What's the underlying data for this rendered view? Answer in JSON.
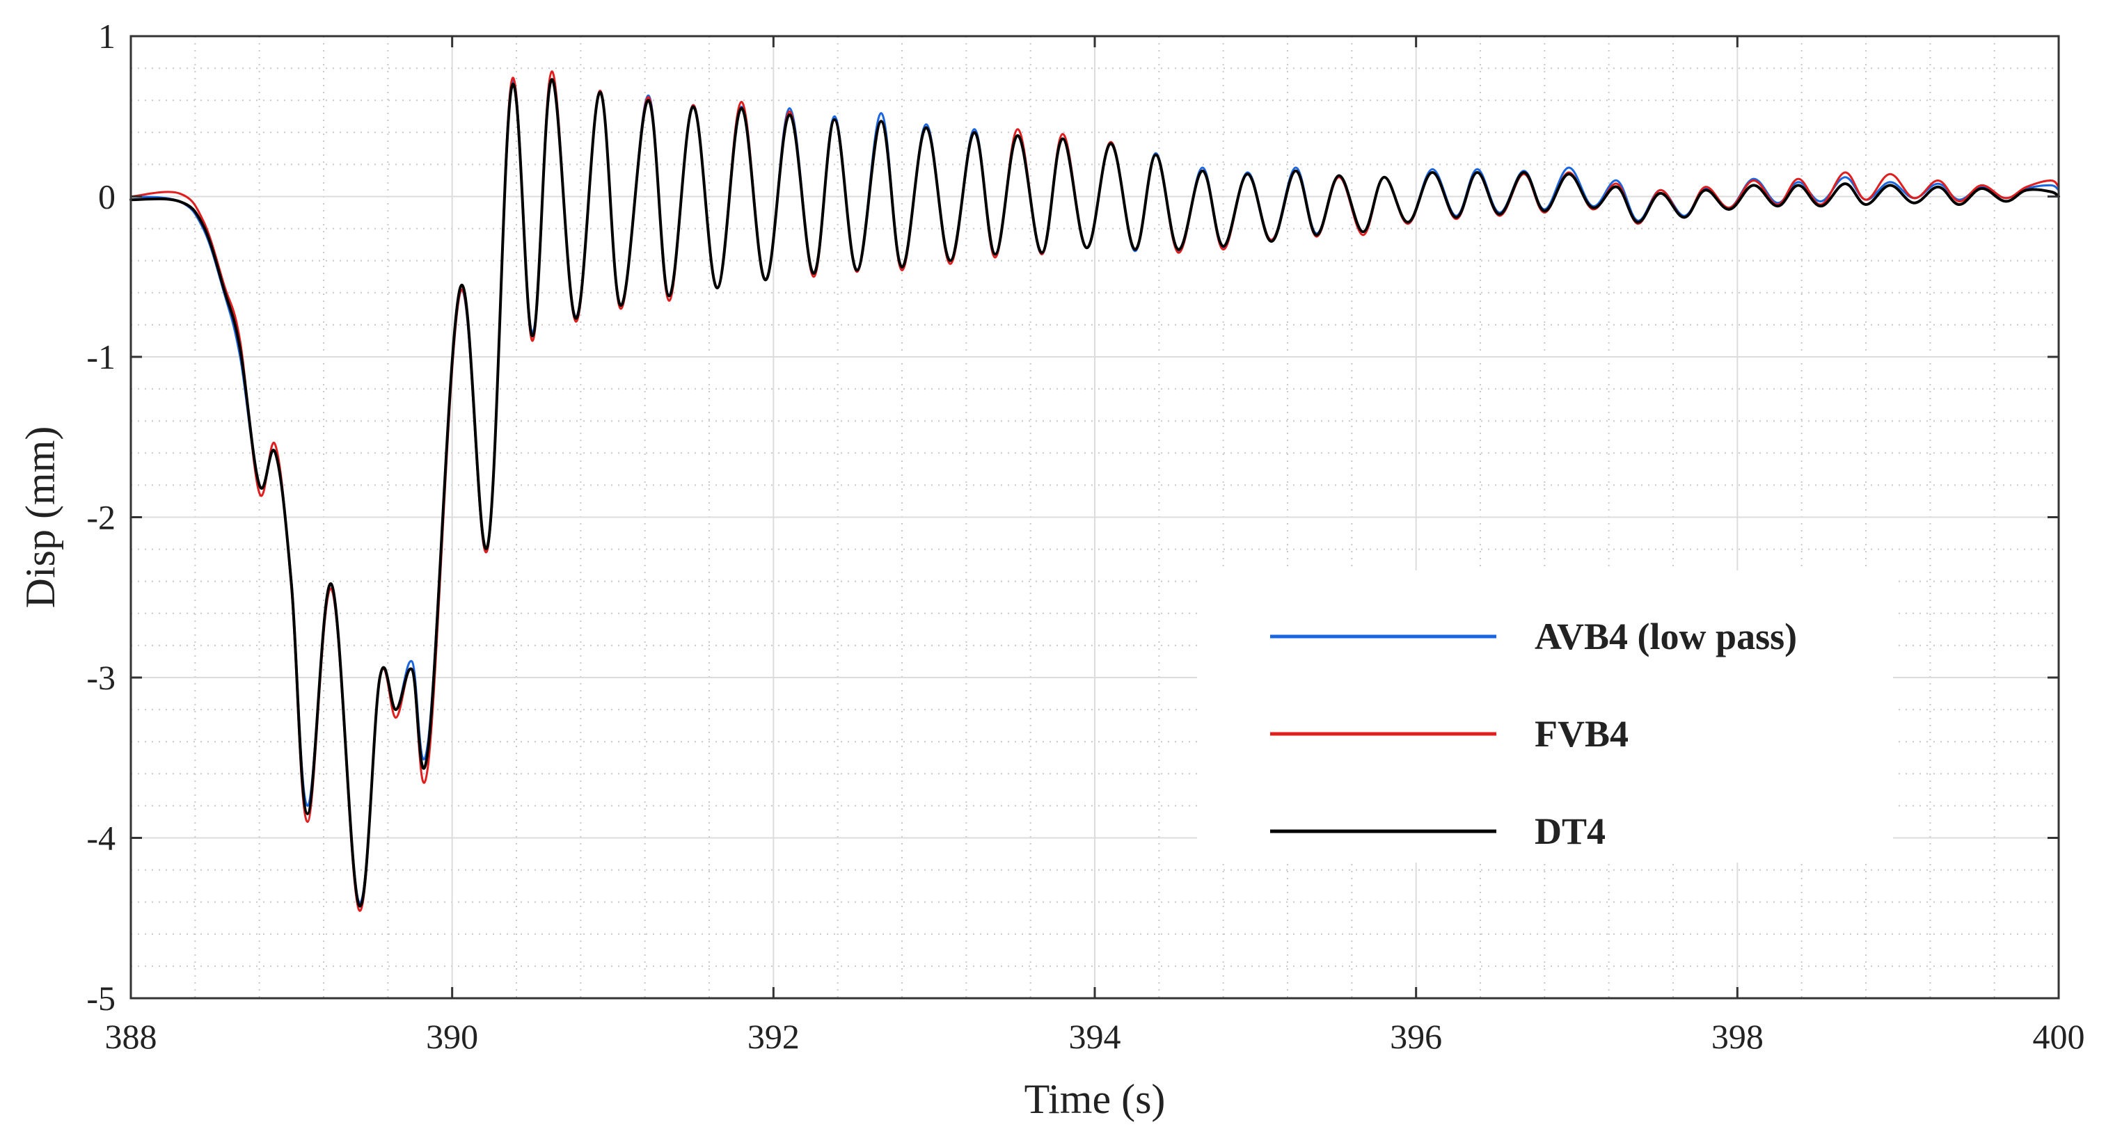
{
  "chart_data": {
    "type": "line",
    "title": "",
    "xlabel": "Time (s)",
    "ylabel": "Disp (mm)",
    "xlim": [
      388,
      400
    ],
    "ylim": [
      -5,
      1
    ],
    "xticks": [
      388,
      390,
      392,
      394,
      396,
      398,
      400
    ],
    "xtick_labels": [
      "388",
      "390",
      "392",
      "394",
      "396",
      "398",
      "400"
    ],
    "yticks": [
      1,
      0,
      -1,
      -2,
      -3,
      -4,
      -5
    ],
    "ytick_labels": [
      "1",
      "0",
      "-1",
      "-2",
      "-3",
      "-4",
      "-5"
    ],
    "grid": true,
    "minor_grid": true,
    "legend_position": "bottom-right",
    "description_note": "Approximate readings of the displacement traces; oscillation peaks listed in time order.",
    "series": [
      {
        "name": "AVB4 (low pass)",
        "color": "#1a66e0",
        "x": [
          388.0,
          388.3,
          388.45,
          388.58,
          388.68,
          388.8,
          388.9,
          389.0,
          389.1,
          389.25,
          389.42,
          389.55,
          389.65,
          389.75,
          389.85,
          390.05,
          390.22,
          390.37,
          390.5,
          390.62,
          390.77,
          390.92,
          391.05,
          391.22,
          391.35,
          391.5,
          391.65,
          391.8,
          391.95,
          392.1,
          392.25,
          392.38,
          392.52,
          392.67,
          392.8,
          392.95,
          393.1,
          393.25,
          393.38,
          393.52,
          393.67,
          393.8,
          393.95,
          394.1,
          394.25,
          394.38,
          394.52,
          394.67,
          394.8,
          394.95,
          395.1,
          395.25,
          395.38,
          395.52,
          395.67,
          395.8,
          395.95,
          396.1,
          396.25,
          396.38,
          396.52,
          396.67,
          396.8,
          396.95,
          397.1,
          397.25,
          397.38,
          397.52,
          397.67,
          397.8,
          397.95,
          398.1,
          398.25,
          398.38,
          398.52,
          398.67,
          398.8,
          398.95,
          399.1,
          399.25,
          399.38,
          399.52,
          399.67,
          399.8,
          399.95,
          400.0
        ],
        "y": [
          0.0,
          -0.03,
          -0.2,
          -0.6,
          -1.0,
          -1.8,
          -1.6,
          -2.4,
          -3.8,
          -2.45,
          -4.4,
          -3.0,
          -3.2,
          -2.9,
          -3.4,
          -0.6,
          -2.2,
          0.7,
          -0.85,
          0.73,
          -0.75,
          0.66,
          -0.68,
          0.63,
          -0.62,
          0.57,
          -0.57,
          0.56,
          -0.52,
          0.55,
          -0.48,
          0.5,
          -0.46,
          0.52,
          -0.45,
          0.45,
          -0.4,
          0.42,
          -0.36,
          0.38,
          -0.36,
          0.36,
          -0.32,
          0.33,
          -0.34,
          0.27,
          -0.34,
          0.18,
          -0.32,
          0.15,
          -0.27,
          0.18,
          -0.23,
          0.13,
          -0.22,
          0.12,
          -0.16,
          0.17,
          -0.12,
          0.17,
          -0.1,
          0.16,
          -0.08,
          0.18,
          -0.06,
          0.1,
          -0.15,
          0.04,
          -0.12,
          0.05,
          -0.07,
          0.11,
          -0.04,
          0.09,
          -0.03,
          0.12,
          -0.02,
          0.09,
          -0.01,
          0.08,
          -0.02,
          0.06,
          -0.01,
          0.05,
          0.07,
          0.04
        ]
      },
      {
        "name": "FVB4",
        "color": "#e01e1e",
        "x": [
          388.0,
          388.3,
          388.45,
          388.58,
          388.68,
          388.8,
          388.9,
          389.0,
          389.1,
          389.25,
          389.42,
          389.55,
          389.65,
          389.75,
          389.85,
          390.05,
          390.22,
          390.37,
          390.5,
          390.62,
          390.77,
          390.92,
          391.05,
          391.22,
          391.35,
          391.5,
          391.65,
          391.8,
          391.95,
          392.1,
          392.25,
          392.38,
          392.52,
          392.67,
          392.8,
          392.95,
          393.1,
          393.25,
          393.38,
          393.52,
          393.67,
          393.8,
          393.95,
          394.1,
          394.25,
          394.38,
          394.52,
          394.67,
          394.8,
          394.95,
          395.1,
          395.25,
          395.38,
          395.52,
          395.67,
          395.8,
          395.95,
          396.1,
          396.25,
          396.38,
          396.52,
          396.67,
          396.8,
          396.95,
          397.1,
          397.25,
          397.38,
          397.52,
          397.67,
          397.8,
          397.95,
          398.1,
          398.25,
          398.38,
          398.52,
          398.67,
          398.8,
          398.95,
          399.1,
          399.25,
          399.38,
          399.52,
          399.67,
          399.8,
          399.95,
          400.0
        ],
        "y": [
          0.0,
          0.02,
          -0.15,
          -0.55,
          -0.9,
          -1.85,
          -1.55,
          -2.45,
          -3.9,
          -2.45,
          -4.45,
          -3.0,
          -3.25,
          -2.95,
          -3.55,
          -0.6,
          -2.2,
          0.72,
          -0.9,
          0.78,
          -0.78,
          0.66,
          -0.7,
          0.62,
          -0.65,
          0.57,
          -0.57,
          0.59,
          -0.52,
          0.53,
          -0.5,
          0.48,
          -0.47,
          0.47,
          -0.46,
          0.43,
          -0.42,
          0.4,
          -0.38,
          0.42,
          -0.36,
          0.39,
          -0.32,
          0.34,
          -0.33,
          0.26,
          -0.35,
          0.16,
          -0.33,
          0.14,
          -0.27,
          0.16,
          -0.25,
          0.12,
          -0.24,
          0.12,
          -0.17,
          0.15,
          -0.14,
          0.15,
          -0.12,
          0.14,
          -0.1,
          0.15,
          -0.08,
          0.08,
          -0.17,
          0.04,
          -0.13,
          0.06,
          -0.07,
          0.1,
          -0.05,
          0.11,
          -0.05,
          0.15,
          -0.02,
          0.14,
          -0.01,
          0.1,
          -0.03,
          0.07,
          -0.01,
          0.06,
          0.1,
          0.06
        ]
      },
      {
        "name": "DT4",
        "color": "#000000",
        "x": [
          388.0,
          388.3,
          388.45,
          388.58,
          388.68,
          388.8,
          388.9,
          389.0,
          389.1,
          389.25,
          389.42,
          389.55,
          389.65,
          389.75,
          389.85,
          390.05,
          390.22,
          390.37,
          390.5,
          390.62,
          390.77,
          390.92,
          391.05,
          391.22,
          391.35,
          391.5,
          391.65,
          391.8,
          391.95,
          392.1,
          392.25,
          392.38,
          392.52,
          392.67,
          392.8,
          392.95,
          393.1,
          393.25,
          393.38,
          393.52,
          393.67,
          393.8,
          393.95,
          394.1,
          394.25,
          394.38,
          394.52,
          394.67,
          394.8,
          394.95,
          395.1,
          395.25,
          395.38,
          395.52,
          395.67,
          395.8,
          395.95,
          396.1,
          396.25,
          396.38,
          396.52,
          396.67,
          396.8,
          396.95,
          397.1,
          397.25,
          397.38,
          397.52,
          397.67,
          397.8,
          397.95,
          398.1,
          398.25,
          398.38,
          398.52,
          398.67,
          398.8,
          398.95,
          399.1,
          399.25,
          399.38,
          399.52,
          399.67,
          399.8,
          399.95,
          400.0
        ],
        "y": [
          -0.02,
          -0.03,
          -0.18,
          -0.58,
          -0.95,
          -1.8,
          -1.6,
          -2.42,
          -3.85,
          -2.42,
          -4.42,
          -3.0,
          -3.2,
          -2.95,
          -3.45,
          -0.57,
          -2.18,
          0.68,
          -0.87,
          0.73,
          -0.76,
          0.65,
          -0.68,
          0.6,
          -0.62,
          0.56,
          -0.57,
          0.55,
          -0.52,
          0.51,
          -0.48,
          0.48,
          -0.46,
          0.47,
          -0.44,
          0.43,
          -0.4,
          0.4,
          -0.36,
          0.38,
          -0.35,
          0.36,
          -0.32,
          0.33,
          -0.33,
          0.26,
          -0.33,
          0.16,
          -0.31,
          0.14,
          -0.28,
          0.16,
          -0.24,
          0.13,
          -0.22,
          0.12,
          -0.16,
          0.15,
          -0.13,
          0.15,
          -0.11,
          0.15,
          -0.09,
          0.14,
          -0.07,
          0.06,
          -0.16,
          0.02,
          -0.13,
          0.04,
          -0.08,
          0.07,
          -0.06,
          0.07,
          -0.06,
          0.08,
          -0.05,
          0.07,
          -0.04,
          0.06,
          -0.05,
          0.05,
          -0.03,
          0.04,
          0.03,
          0.0
        ]
      }
    ]
  }
}
